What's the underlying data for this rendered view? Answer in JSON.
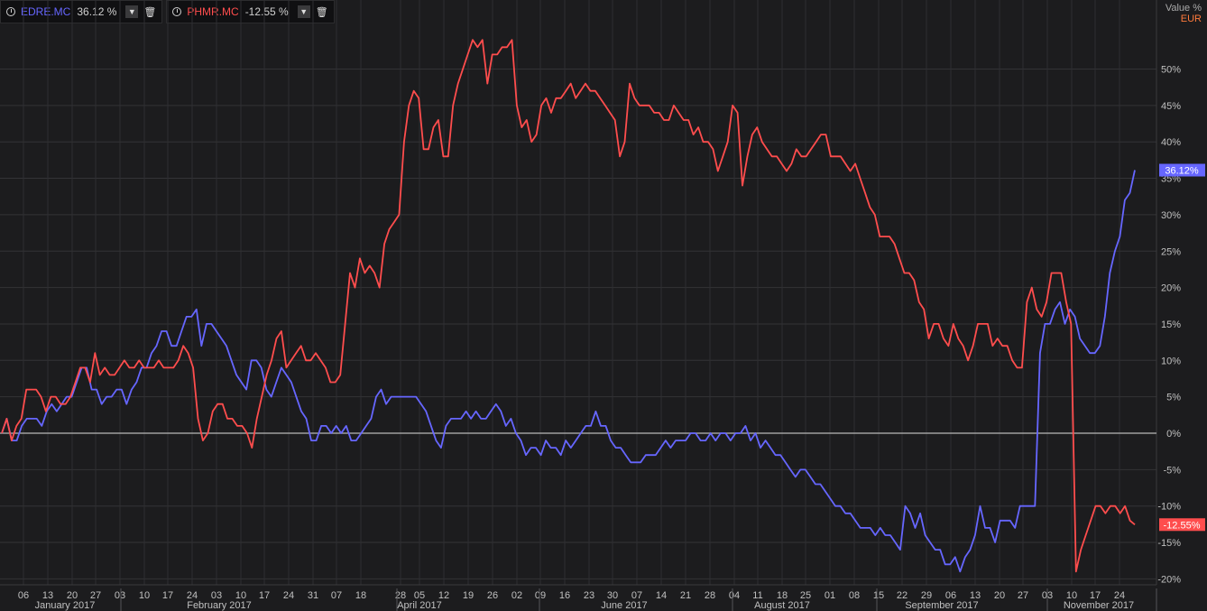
{
  "legend": [
    {
      "symbol": "EDRE.MC",
      "change": "36.12 %",
      "color": "#6666ff",
      "dropdown_icon": "chevron-down-icon",
      "delete_icon": "trash-icon"
    },
    {
      "symbol": "PHMR.MC",
      "change": "-12.55 %",
      "color": "#ff4d4d",
      "dropdown_icon": "chevron-down-icon",
      "delete_icon": "trash-icon"
    }
  ],
  "axis": {
    "value_label": "Value %",
    "currency_label": "EUR"
  },
  "chart_data": {
    "type": "line",
    "y_axis": {
      "ticks": [
        "50%",
        "45%",
        "40%",
        "35%",
        "30%",
        "25%",
        "20%",
        "15%",
        "10%",
        "5%",
        "0%",
        "-5%",
        "-10%",
        "-15%",
        "-20%"
      ],
      "ylim": [
        -20,
        55
      ],
      "position": "right",
      "grid": true
    },
    "x_axis": {
      "day_ticks": [
        "06",
        "13",
        "20",
        "27",
        "03",
        "10",
        "17",
        "24",
        "03",
        "10",
        "17",
        "24",
        "31",
        "07",
        "18",
        "28",
        "05",
        "12",
        "19",
        "26",
        "02",
        "09",
        "16",
        "23",
        "30",
        "07",
        "14",
        "21",
        "28",
        "04",
        "11",
        "18",
        "25",
        "01",
        "08",
        "15",
        "22",
        "29",
        "06",
        "13",
        "20",
        "27",
        "03",
        "10",
        "17",
        "24"
      ],
      "month_labels": [
        "January 2017",
        "February 2017",
        "April 2017",
        "June 2017",
        "August 2017",
        "September 2017",
        "November 2017"
      ],
      "grid": true
    },
    "last_value_labels": [
      {
        "series": "EDRE.MC",
        "text": "36.12%",
        "color": "#6666ff"
      },
      {
        "series": "PHMR.MC",
        "text": "-12.55%",
        "color": "#ff4d4d"
      }
    ],
    "series": [
      {
        "name": "EDRE.MC",
        "color": "#6666ff",
        "values": [
          0,
          2,
          -1,
          -1,
          1,
          2,
          2,
          2,
          1,
          3,
          4,
          3,
          4,
          5,
          5,
          7,
          9,
          9,
          6,
          6,
          4,
          5,
          5,
          6,
          6,
          4,
          6,
          7,
          9,
          9,
          11,
          12,
          14,
          14,
          12,
          12,
          14,
          16,
          16,
          17,
          12,
          15,
          15,
          14,
          13,
          12,
          10,
          8,
          7,
          6,
          10,
          10,
          9,
          6,
          5,
          7,
          9,
          8,
          7,
          5,
          3,
          2,
          -1,
          -1,
          1,
          1,
          0,
          1,
          0,
          1,
          -1,
          -1,
          0,
          1,
          2,
          5,
          6,
          4,
          5,
          5,
          5,
          5,
          5,
          5,
          4,
          3,
          1,
          -1,
          -2,
          1,
          2,
          2,
          2,
          3,
          2,
          3,
          2,
          2,
          3,
          4,
          3,
          1,
          2,
          0,
          -1,
          -3,
          -2,
          -2,
          -3,
          -1,
          -2,
          -2,
          -3,
          -1,
          -2,
          -1,
          0,
          1,
          1,
          3,
          1,
          1,
          -1,
          -2,
          -2,
          -3,
          -4,
          -4,
          -4,
          -3,
          -3,
          -3,
          -2,
          -1,
          -2,
          -1,
          -1,
          -1,
          0,
          0,
          -1,
          -1,
          0,
          -1,
          0,
          0,
          -1,
          0,
          0,
          1,
          -1,
          0,
          -2,
          -1,
          -2,
          -3,
          -3,
          -4,
          -5,
          -6,
          -5,
          -5,
          -6,
          -7,
          -7,
          -8,
          -9,
          -10,
          -10,
          -11,
          -11,
          -12,
          -13,
          -13,
          -13,
          -14,
          -13,
          -14,
          -14,
          -15,
          -16,
          -10,
          -11,
          -13,
          -11,
          -14,
          -15,
          -16,
          -16,
          -18,
          -18,
          -17,
          -19,
          -17,
          -16,
          -14,
          -10,
          -13,
          -13,
          -15,
          -12,
          -12,
          -12,
          -13,
          -10,
          -10,
          -10,
          -10,
          11,
          15,
          15,
          17,
          18,
          15,
          17,
          16,
          13,
          12,
          11,
          11,
          12,
          16,
          22,
          25,
          27,
          32,
          33,
          36.12
        ]
      },
      {
        "name": "PHMR.MC",
        "color": "#ff4d4d",
        "values": [
          0,
          2,
          -1,
          1,
          2,
          6,
          6,
          6,
          5,
          3,
          5,
          5,
          4,
          4,
          5,
          7,
          9,
          9,
          7,
          11,
          8,
          9,
          8,
          8,
          9,
          10,
          9,
          9,
          10,
          9,
          9,
          9,
          10,
          9,
          9,
          9,
          10,
          12,
          11,
          9,
          2,
          -1,
          0,
          3,
          4,
          4,
          2,
          2,
          1,
          1,
          0,
          -2,
          2,
          5,
          8,
          10,
          13,
          14,
          9,
          10,
          11,
          12,
          10,
          10,
          11,
          10,
          9,
          7,
          7,
          8,
          15,
          22,
          20,
          24,
          22,
          23,
          22,
          20,
          26,
          28,
          29,
          30,
          40,
          45,
          47,
          46,
          39,
          39,
          42,
          43,
          38,
          38,
          45,
          48,
          50,
          52,
          54,
          53,
          54,
          48,
          52,
          52,
          53,
          53,
          54,
          45,
          42,
          43,
          40,
          41,
          45,
          46,
          44,
          46,
          46,
          47,
          48,
          46,
          47,
          48,
          47,
          47,
          46,
          45,
          44,
          43,
          38,
          40,
          48,
          46,
          45,
          45,
          45,
          44,
          44,
          43,
          43,
          45,
          44,
          43,
          43,
          41,
          42,
          40,
          40,
          39,
          36,
          38,
          40,
          45,
          44,
          34,
          38,
          41,
          42,
          40,
          39,
          38,
          38,
          37,
          36,
          37,
          39,
          38,
          38,
          39,
          40,
          41,
          41,
          38,
          38,
          38,
          37,
          36,
          37,
          35,
          33,
          31,
          30,
          27,
          27,
          27,
          26,
          24,
          22,
          22,
          21,
          18,
          17,
          13,
          15,
          15,
          13,
          12,
          15,
          13,
          12,
          10,
          12,
          15,
          15,
          15,
          12,
          13,
          12,
          12,
          10,
          9,
          9,
          18,
          20,
          17,
          16,
          18,
          22,
          22,
          22,
          18,
          15,
          -19,
          -16,
          -14,
          -12,
          -10,
          -10,
          -11,
          -10,
          -10,
          -11,
          -10,
          -12,
          -12.55
        ]
      }
    ]
  }
}
